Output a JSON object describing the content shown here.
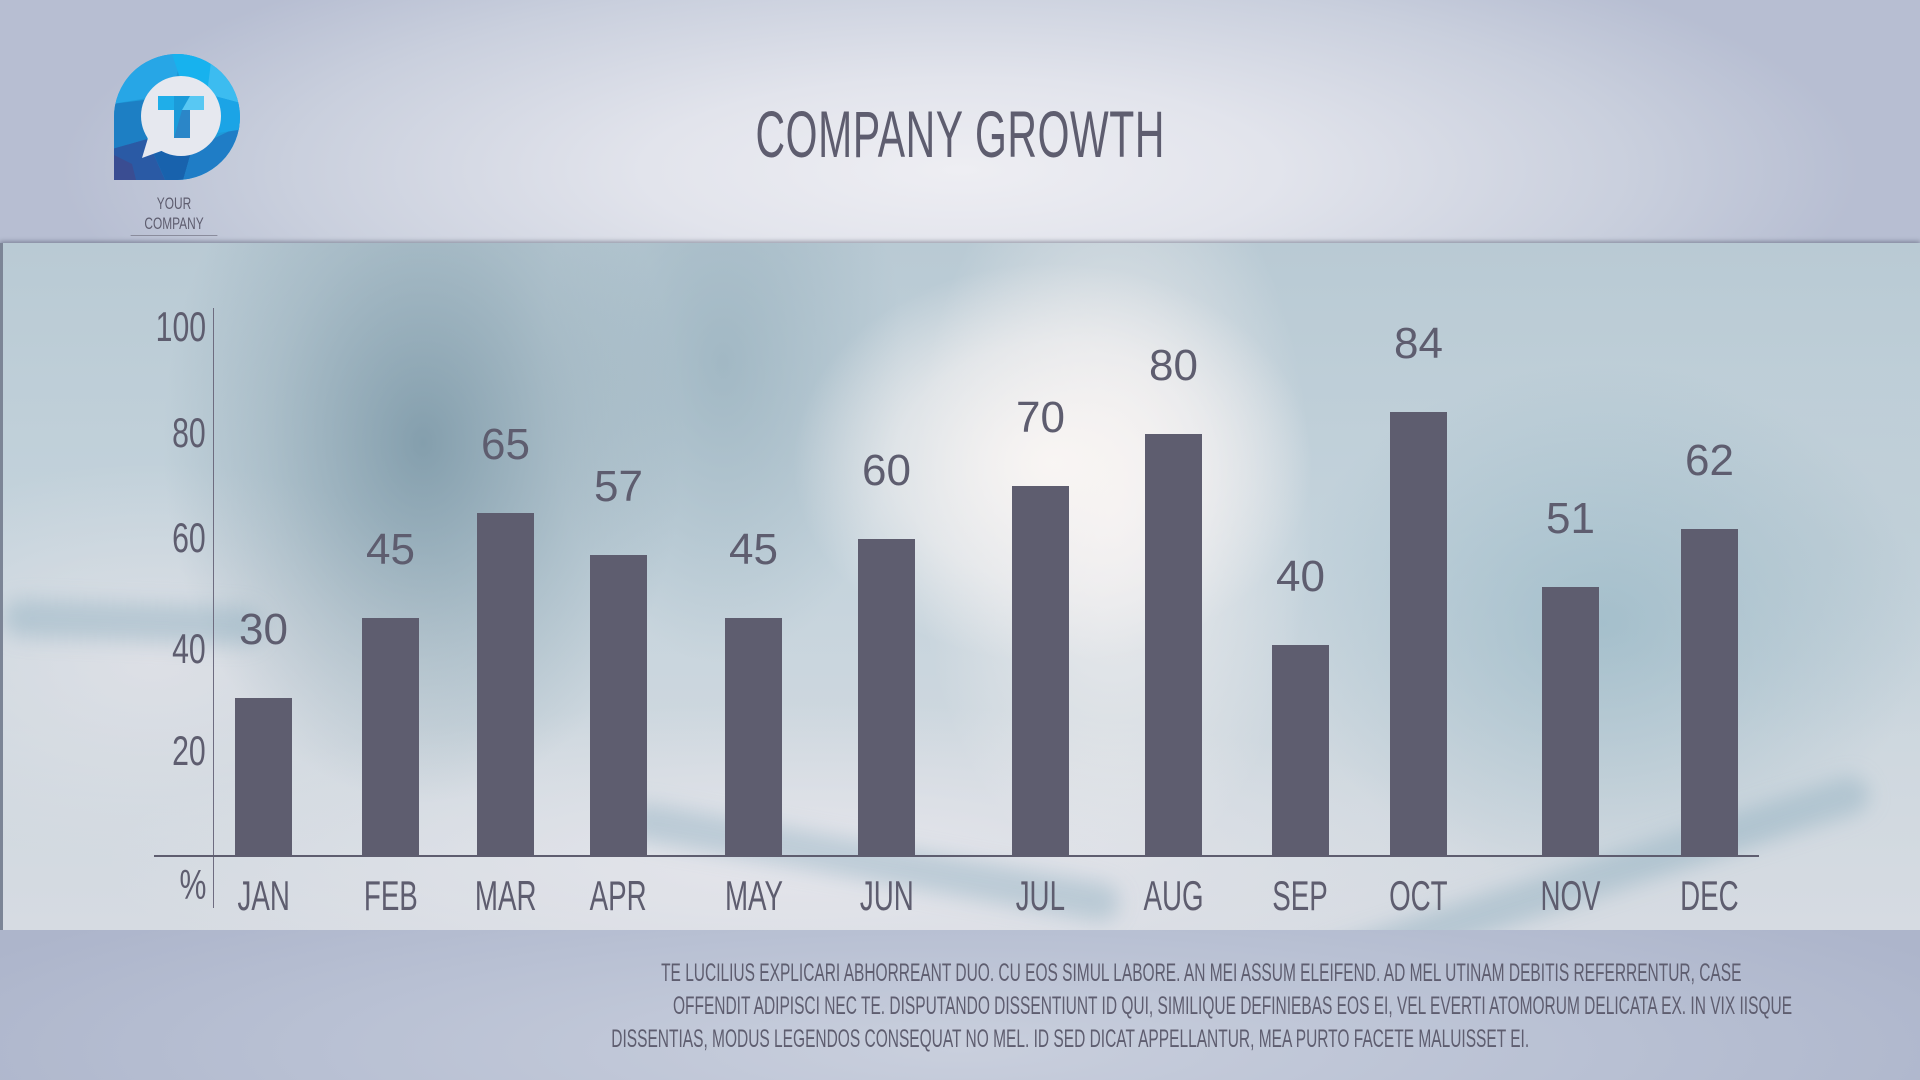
{
  "header": {
    "title": "COMPANY GROWTH",
    "logo": {
      "icon": "speech-bubble-t-logo",
      "caption": "YOUR COMPANY"
    }
  },
  "chart_data": {
    "type": "bar",
    "title": "COMPANY GROWTH",
    "xlabel": "",
    "ylabel": "%",
    "categories": [
      "JAN",
      "FEB",
      "MAR",
      "APR",
      "MAY",
      "JUN",
      "JUL",
      "AUG",
      "SEP",
      "OCT",
      "NOV",
      "DEC"
    ],
    "values": [
      30,
      45,
      65,
      57,
      45,
      60,
      70,
      80,
      40,
      84,
      51,
      62
    ],
    "ylim": [
      0,
      100
    ],
    "yticks": [
      "100",
      "80",
      "60",
      "40",
      "20",
      "%"
    ],
    "grid": false,
    "legend": null,
    "data_labels": true,
    "bar_color": "#5e5d6f"
  },
  "footer": {
    "lines": [
      "TE LUCILIUS EXPLICARI ABHORREANT DUO. CU EOS SIMUL LABORE. AN MEI ASSUM ELEIFEND. AD MEL UTINAM DEBITIS REFERRENTUR, CASE",
      "OFFENDIT ADIPISCI NEC TE. DISPUTANDO DISSENTIUNT ID QUI, SIMILIQUE DEFINIEBAS EOS EI, VEL EVERTI ATOMORUM DELICATA EX. IN VIX IISQUE",
      "DISSENTIAS, MODUS LEGENDOS CONSEQUAT NO MEL. ID SED DICAT APPELLANTUR, MEA PURTO FACETE MALUISSET EI."
    ]
  },
  "colors": {
    "text": "#5e5d6f",
    "bar": "#5e5d6f",
    "background": "#b3bbd0",
    "logo_blue": "#1ea0e0"
  }
}
